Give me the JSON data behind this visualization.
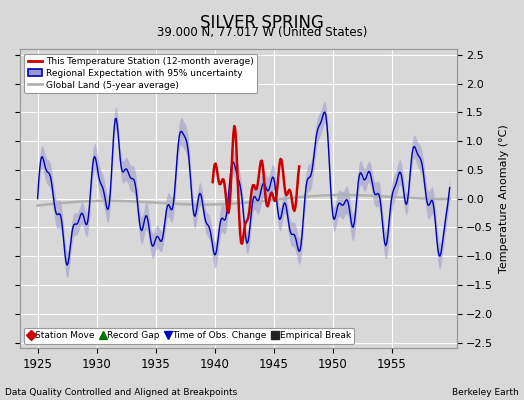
{
  "title": "SILVER SPRING",
  "subtitle": "39.000 N, 77.017 W (United States)",
  "ylabel": "Temperature Anomaly (°C)",
  "xlabel_bottom_left": "Data Quality Controlled and Aligned at Breakpoints",
  "xlabel_bottom_right": "Berkeley Earth",
  "xlim": [
    1923.5,
    1960.5
  ],
  "ylim": [
    -2.6,
    2.6
  ],
  "yticks": [
    -2.5,
    -2.0,
    -1.5,
    -1.0,
    -0.5,
    0.0,
    0.5,
    1.0,
    1.5,
    2.0,
    2.5
  ],
  "xticks": [
    1925,
    1930,
    1935,
    1940,
    1945,
    1950,
    1955
  ],
  "bg_color": "#d8d8d8",
  "plot_bg_color": "#d8d8d8",
  "grid_color": "#ffffff",
  "blue_line_color": "#0000bb",
  "blue_fill_color": "#9999cc",
  "red_line_color": "#cc0000",
  "gray_line_color": "#b0b0b0",
  "legend1_labels": [
    "This Temperature Station (12-month average)",
    "Regional Expectation with 95% uncertainty",
    "Global Land (5-year average)"
  ],
  "legend2_labels": [
    "Station Move",
    "Record Gap",
    "Time of Obs. Change",
    "Empirical Break"
  ],
  "legend2_markers": [
    "D",
    "^",
    "v",
    "s"
  ],
  "legend2_colors": [
    "#cc0000",
    "#007700",
    "#0000bb",
    "#222222"
  ]
}
